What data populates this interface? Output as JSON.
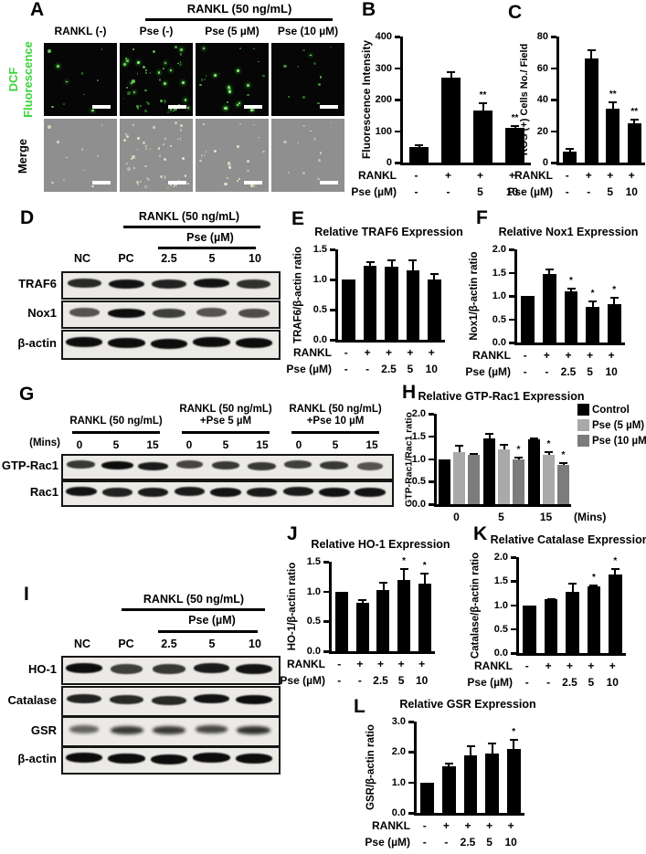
{
  "panel_labels": {
    "A": "A",
    "B": "B",
    "C": "C",
    "D": "D",
    "E": "E",
    "F": "F",
    "G": "G",
    "H": "H",
    "I": "I",
    "J": "J",
    "K": "K",
    "L": "L"
  },
  "panels": {
    "A": {
      "header": "RANKL (50 ng/mL)",
      "columns": [
        "RANKL (-)",
        "Pse (-)",
        "Pse (5 µM)",
        "Pse (10 µM)"
      ],
      "rows": [
        {
          "label": "DCF Fluorescence",
          "color": "#3bd43b"
        },
        {
          "label": "Merge",
          "color": "#000000"
        }
      ],
      "dot_counts": [
        10,
        48,
        26,
        12
      ]
    },
    "D": {
      "header": "RANKL (50 ng/mL)",
      "subheader": "Pse (µM)",
      "lanes": [
        "NC",
        "PC",
        "2.5",
        "5",
        "10"
      ],
      "blot_rows": [
        {
          "label": "TRAF6",
          "intensities": [
            0.8,
            0.95,
            0.85,
            0.95,
            0.75
          ]
        },
        {
          "label": "Nox1",
          "intensities": [
            0.5,
            1,
            0.65,
            0.5,
            0.55
          ]
        },
        {
          "label": "β-actin",
          "intensities": [
            1,
            1,
            1,
            1,
            1
          ]
        }
      ]
    },
    "G": {
      "mins_label": "(Mins)",
      "groups": [
        {
          "line1": "RANKL (50 ng/mL)",
          "line2": "",
          "times": [
            "0",
            "5",
            "15"
          ]
        },
        {
          "line1": "RANKL (50 ng/mL)",
          "line2": "+Pse 5 µM",
          "times": [
            "0",
            "5",
            "15"
          ]
        },
        {
          "line1": "RANKL (50 ng/mL)",
          "line2": "+Pse 10 µM",
          "times": [
            "0",
            "5",
            "15"
          ]
        }
      ],
      "blot_rows": [
        {
          "label": "GTP-Rac1",
          "intensities": [
            0.7,
            1,
            0.9,
            0.6,
            0.7,
            0.7,
            0.65,
            0.7,
            0.5
          ]
        },
        {
          "label": "Rac1",
          "intensities": [
            0.95,
            0.85,
            0.9,
            0.9,
            0.95,
            0.9,
            0.9,
            0.95,
            0.95
          ]
        }
      ]
    },
    "I": {
      "header": "RANKL (50 ng/mL)",
      "subheader": "Pse (µM)",
      "lanes": [
        "NC",
        "PC",
        "2.5",
        "5",
        "10"
      ],
      "blot_rows": [
        {
          "label": "HO-1",
          "intensities": [
            1,
            0.65,
            0.7,
            0.9,
            0.95
          ]
        },
        {
          "label": "Catalase",
          "intensities": [
            0.85,
            0.8,
            0.8,
            0.95,
            1
          ]
        },
        {
          "label": "GSR",
          "intensities": [
            0.4,
            0.7,
            0.7,
            0.6,
            0.75
          ]
        },
        {
          "label": "β-actin",
          "intensities": [
            1,
            1,
            1,
            1,
            1
          ]
        }
      ]
    }
  },
  "chart_data": [
    {
      "panel": "B",
      "type": "bar",
      "title": "",
      "ylabel": "Fluorescence Intensity",
      "ylim": [
        0,
        400
      ],
      "yticks": [
        "0",
        "100",
        "200",
        "300",
        "400"
      ],
      "grid": false,
      "values": [
        50,
        270,
        165,
        110
      ],
      "errors": [
        8,
        20,
        25,
        10
      ],
      "sig": [
        "",
        "",
        "**",
        "**"
      ],
      "x_rows": [
        {
          "label": "RANKL",
          "values": [
            "-",
            "+",
            "+",
            "+"
          ]
        },
        {
          "label": "Pse (µM)",
          "values": [
            "-",
            "-",
            "5",
            "10"
          ]
        }
      ]
    },
    {
      "panel": "C",
      "type": "bar",
      "title": "",
      "ylabel": "ROS (+) Cells No./ Field",
      "ylim": [
        0,
        80
      ],
      "yticks": [
        "0",
        "20",
        "40",
        "60",
        "80"
      ],
      "grid": false,
      "values": [
        7,
        66,
        34,
        25
      ],
      "errors": [
        2,
        6,
        5,
        3
      ],
      "sig": [
        "",
        "",
        "**",
        "**"
      ],
      "x_rows": [
        {
          "label": "RANKL",
          "values": [
            "-",
            "+",
            "+",
            "+"
          ]
        },
        {
          "label": "Pse (µM)",
          "values": [
            "-",
            "-",
            "5",
            "10"
          ]
        }
      ]
    },
    {
      "panel": "E",
      "type": "bar",
      "title": "Relative TRAF6 Expression",
      "ylabel": "TRAF6/β-actin ratio",
      "ylim": [
        0,
        1.5
      ],
      "yticks": [
        "0.0",
        "0.5",
        "1.0",
        "1.5"
      ],
      "grid": false,
      "values": [
        1.0,
        1.22,
        1.21,
        1.15,
        1.0
      ],
      "errors": [
        0,
        0.09,
        0.12,
        0.19,
        0.1
      ],
      "sig": [
        "",
        "",
        "",
        "",
        ""
      ],
      "x_rows": [
        {
          "label": "RANKL",
          "values": [
            "-",
            "+",
            "+",
            "+",
            "+"
          ]
        },
        {
          "label": "Pse (µM)",
          "values": [
            "-",
            "-",
            "2.5",
            "5",
            "10"
          ]
        }
      ]
    },
    {
      "panel": "F",
      "type": "bar",
      "title": "Relative Nox1 Expression",
      "ylabel": "Nox1/β-actin ratio",
      "ylim": [
        0,
        2
      ],
      "yticks": [
        "0.0",
        "0.5",
        "1.0",
        "1.5",
        "2.0"
      ],
      "grid": false,
      "values": [
        1.0,
        1.47,
        1.1,
        0.76,
        0.82
      ],
      "errors": [
        0,
        0.11,
        0.08,
        0.14,
        0.16
      ],
      "sig": [
        "",
        "",
        "*",
        "*",
        "*"
      ],
      "x_rows": [
        {
          "label": "RANKL",
          "values": [
            "-",
            "+",
            "+",
            "+",
            "+"
          ]
        },
        {
          "label": "Pse (µM)",
          "values": [
            "-",
            "-",
            "2.5",
            "5",
            "10"
          ]
        }
      ]
    },
    {
      "panel": "H",
      "type": "grouped_bar",
      "title": "Relative GTP-Rac1 Expression",
      "ylabel": "GTP-Rac1/Rac1 ratio",
      "ylim": [
        0,
        2
      ],
      "yticks": [
        "0.0",
        "0.5",
        "1.0",
        "1.5",
        "2.0"
      ],
      "grid": false,
      "categories": [
        "0",
        "5",
        "15"
      ],
      "x_suffix": "(Mins)",
      "legend_position": "top-right",
      "series": [
        {
          "name": "Control",
          "color": "#000000",
          "values": [
            1.0,
            1.45,
            1.43
          ],
          "errors": [
            0,
            0.13,
            0.05
          ],
          "sig": [
            "",
            "",
            ""
          ]
        },
        {
          "name": "Pse (5 µM)",
          "color": "#a9a9a9",
          "values": [
            1.15,
            1.22,
            1.1
          ],
          "errors": [
            0.16,
            0.12,
            0.08
          ],
          "sig": [
            "",
            "",
            "*"
          ]
        },
        {
          "name": "Pse (10 µM)",
          "color": "#7c7c7c",
          "values": [
            1.09,
            1.0,
            0.87
          ],
          "errors": [
            0.04,
            0.06,
            0.05
          ],
          "sig": [
            "",
            "*",
            "*"
          ]
        }
      ]
    },
    {
      "panel": "J",
      "type": "bar",
      "title": "Relative HO-1 Expression",
      "ylabel": "HO-1/β-actin ratio",
      "ylim": [
        0,
        1.5
      ],
      "yticks": [
        "0.0",
        "0.5",
        "1.0",
        "1.5"
      ],
      "grid": false,
      "values": [
        1.0,
        0.81,
        1.02,
        1.2,
        1.13
      ],
      "errors": [
        0,
        0.07,
        0.15,
        0.19,
        0.18
      ],
      "sig": [
        "",
        "",
        "",
        "*",
        "*"
      ],
      "x_rows": [
        {
          "label": "RANKL",
          "values": [
            "-",
            "+",
            "+",
            "+",
            "+"
          ]
        },
        {
          "label": "Pse (µM)",
          "values": [
            "-",
            "-",
            "2.5",
            "5",
            "10"
          ]
        }
      ]
    },
    {
      "panel": "K",
      "type": "bar",
      "title": "Relative Catalase Expression",
      "ylabel": "Catalase/β-actin ratio",
      "ylim": [
        0,
        2
      ],
      "yticks": [
        "0.0",
        "0.5",
        "1.0",
        "1.5",
        "2.0"
      ],
      "grid": false,
      "values": [
        1.0,
        1.12,
        1.28,
        1.39,
        1.64
      ],
      "errors": [
        0,
        0.02,
        0.18,
        0.04,
        0.13
      ],
      "sig": [
        "",
        "",
        "",
        "*",
        "*"
      ],
      "x_rows": [
        {
          "label": "RANKL",
          "values": [
            "-",
            "+",
            "+",
            "+",
            "+"
          ]
        },
        {
          "label": "Pse (µM)",
          "values": [
            "-",
            "-",
            "2.5",
            "5",
            "10"
          ]
        }
      ]
    },
    {
      "panel": "L",
      "type": "bar",
      "title": "Relative GSR Expression",
      "ylabel": "GSR/β-actin ratio",
      "ylim": [
        0,
        3
      ],
      "yticks": [
        "0.0",
        "1.0",
        "2.0",
        "3.0"
      ],
      "grid": false,
      "values": [
        1.0,
        1.52,
        1.88,
        1.94,
        2.1
      ],
      "errors": [
        0,
        0.12,
        0.33,
        0.38,
        0.33
      ],
      "sig": [
        "",
        "",
        "",
        "",
        "*"
      ],
      "x_rows": [
        {
          "label": "RANKL",
          "values": [
            "-",
            "+",
            "+",
            "+",
            "+"
          ]
        },
        {
          "label": "Pse (µM)",
          "values": [
            "-",
            "-",
            "2.5",
            "5",
            "10"
          ]
        }
      ]
    }
  ]
}
